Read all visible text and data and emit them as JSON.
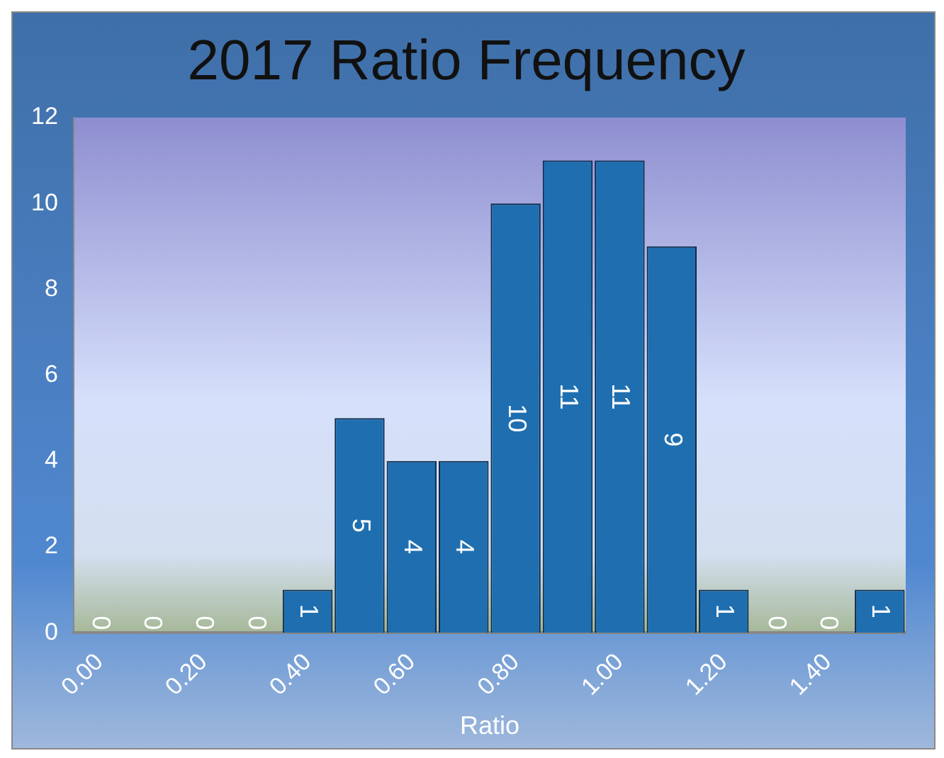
{
  "chart_data": {
    "type": "bar",
    "title": "2017 Ratio Frequency",
    "xlabel": "Ratio",
    "categories": [
      "0.00",
      null,
      "0.20",
      null,
      "0.40",
      null,
      "0.60",
      null,
      "0.80",
      null,
      "1.00",
      null,
      "1.20",
      null,
      "1.40",
      null
    ],
    "values": [
      0,
      0,
      0,
      0,
      1,
      5,
      4,
      4,
      10,
      11,
      11,
      9,
      1,
      0,
      0,
      1
    ],
    "color": "#1f6fb0",
    "ylim": [
      0,
      12
    ],
    "yticks": [
      0,
      2,
      4,
      6,
      8,
      10,
      12
    ],
    "grid": false,
    "legend": false,
    "data_labels": true
  }
}
